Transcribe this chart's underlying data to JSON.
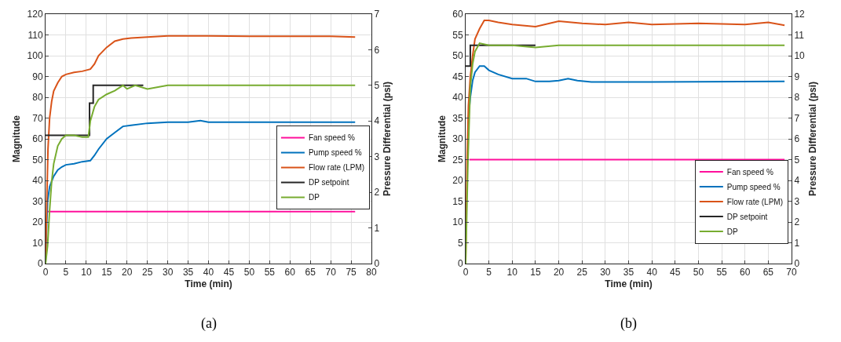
{
  "chart_data": [
    {
      "type": "line",
      "xlabel": "Time (min)",
      "ylabel": "Magnitude",
      "y2label": "Pressure Differential (psi)",
      "annotations": [
        "(a)"
      ],
      "xlim": [
        0,
        80
      ],
      "xticks": [
        0,
        5,
        10,
        15,
        20,
        25,
        30,
        35,
        40,
        45,
        50,
        55,
        60,
        65,
        70,
        75,
        80
      ],
      "ylim": [
        0,
        120
      ],
      "yticks": [
        0,
        10,
        20,
        30,
        40,
        50,
        60,
        70,
        80,
        90,
        100,
        110,
        120
      ],
      "y2lim": [
        0,
        7
      ],
      "y2ticks": [
        0,
        1,
        2,
        3,
        4,
        5,
        6,
        7
      ],
      "grid": true,
      "legend": "right",
      "series": [
        {
          "name": "Fan speed %",
          "color": "#ff0f9b",
          "x": [
            0.5,
            76
          ],
          "values": [
            25,
            25
          ]
        },
        {
          "name": "Pump speed %",
          "color": "#0072bd",
          "x": [
            0,
            0.3,
            0.5,
            1,
            2,
            3,
            4,
            5,
            7,
            9,
            11,
            12,
            13,
            15,
            17,
            19,
            21,
            25,
            30,
            35,
            38,
            40,
            45,
            50,
            60,
            70,
            76
          ],
          "values": [
            0,
            20,
            30,
            37,
            42,
            45,
            46.5,
            47.5,
            48,
            49,
            49.5,
            52,
            55,
            60,
            63,
            66,
            66.5,
            67.5,
            68,
            68,
            68.8,
            68,
            68,
            68,
            68,
            68,
            68
          ]
        },
        {
          "name": "Flow rate (LPM)",
          "color": "#d95319",
          "x": [
            0,
            0.3,
            0.6,
            1,
            1.5,
            2,
            3,
            4,
            5,
            7,
            9,
            11,
            12,
            13,
            15,
            17,
            19,
            21,
            25,
            30,
            40,
            50,
            60,
            70,
            76
          ],
          "values": [
            0,
            30,
            55,
            70,
            78,
            83,
            87,
            90,
            91,
            92,
            92.5,
            93.5,
            96,
            100,
            104,
            107,
            108,
            108.5,
            109,
            109.5,
            109.5,
            109.3,
            109.3,
            109.3,
            109
          ]
        },
        {
          "name": "DP setpoint",
          "type": "step",
          "axis": "y2",
          "color": "#262626",
          "x": [
            0,
            10.8,
            11.7,
            24
          ],
          "values": [
            3.6,
            4.5,
            5.0,
            5.0
          ]
        },
        {
          "name": "DP",
          "axis": "y2",
          "color": "#77ac30",
          "x": [
            0,
            0.5,
            1,
            1.5,
            2,
            3,
            4,
            5,
            7,
            9,
            10.5,
            11,
            12,
            13,
            15,
            17,
            19,
            20,
            22,
            25,
            30,
            40,
            50,
            60,
            70,
            76
          ],
          "values": [
            0,
            0.5,
            1.5,
            2.3,
            2.8,
            3.3,
            3.5,
            3.6,
            3.6,
            3.55,
            3.55,
            4.0,
            4.4,
            4.6,
            4.75,
            4.85,
            5.0,
            4.9,
            5.0,
            4.9,
            5.0,
            5.0,
            5.0,
            5.0,
            5.0,
            5.0
          ]
        }
      ]
    },
    {
      "type": "line",
      "xlabel": "Time (min)",
      "ylabel": "Magnitude",
      "y2label": "Pressure Differential (psi)",
      "annotations": [
        "(b)"
      ],
      "xlim": [
        0,
        70
      ],
      "xticks": [
        0,
        5,
        10,
        15,
        20,
        25,
        30,
        35,
        40,
        45,
        50,
        55,
        60,
        65,
        70
      ],
      "ylim": [
        0,
        60
      ],
      "yticks": [
        0,
        5,
        10,
        15,
        20,
        25,
        30,
        35,
        40,
        45,
        50,
        55,
        60
      ],
      "y2lim": [
        0,
        12
      ],
      "y2ticks": [
        0,
        1,
        2,
        3,
        4,
        5,
        6,
        7,
        8,
        9,
        10,
        11,
        12
      ],
      "grid": true,
      "legend": "bottom right",
      "series": [
        {
          "name": "Fan speed %",
          "color": "#ff0f9b",
          "x": [
            0.8,
            68.5
          ],
          "values": [
            25,
            25
          ]
        },
        {
          "name": "Pump speed %",
          "color": "#0072bd",
          "x": [
            0.6,
            1,
            1.5,
            2,
            3,
            4,
            5,
            7,
            10,
            13,
            15,
            18,
            20,
            22,
            24,
            27,
            40,
            68.5
          ],
          "values": [
            35,
            40,
            44,
            46,
            47.5,
            47.5,
            46.5,
            45.5,
            44.5,
            44.5,
            43.8,
            43.8,
            44,
            44.5,
            44,
            43.7,
            43.7,
            43.8
          ]
        },
        {
          "name": "Flow rate (LPM)",
          "color": "#d95319",
          "x": [
            0,
            0.3,
            0.6,
            1,
            1.5,
            2,
            3,
            4,
            5,
            7,
            10,
            15,
            20,
            25,
            30,
            35,
            40,
            50,
            60,
            65,
            68.5
          ],
          "values": [
            0,
            25,
            38,
            45,
            50,
            54,
            56.5,
            58.5,
            58.5,
            58,
            57.5,
            57,
            58.3,
            57.8,
            57.5,
            58,
            57.5,
            57.8,
            57.5,
            58,
            57.3
          ]
        },
        {
          "name": "DP setpoint",
          "type": "step",
          "axis": "y2",
          "color": "#262626",
          "x": [
            0,
            1,
            15
          ],
          "values": [
            9.5,
            10.5,
            10.5
          ]
        },
        {
          "name": "DP",
          "axis": "y2",
          "color": "#77ac30",
          "x": [
            0,
            0.5,
            1,
            1.5,
            2,
            3,
            5,
            10,
            15,
            20,
            30,
            68.5
          ],
          "values": [
            0,
            5,
            8.5,
            9.6,
            10.2,
            10.6,
            10.5,
            10.5,
            10.4,
            10.5,
            10.5,
            10.5
          ]
        }
      ]
    }
  ]
}
